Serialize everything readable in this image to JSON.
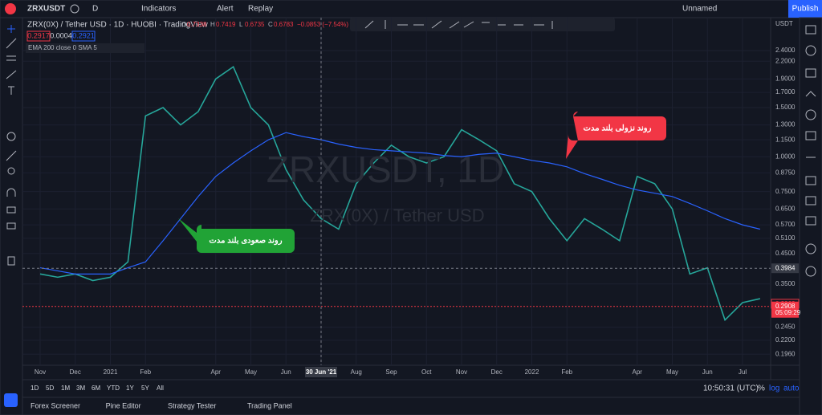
{
  "toolbar": {
    "symbol": "ZRXUSDT",
    "interval": "D",
    "indicators": "Indicators",
    "alert": "Alert",
    "replay": "Replay",
    "layout": "Unnamed",
    "publish": "Publish"
  },
  "legend": {
    "title": "ZRX(0X) / Tether USD · 1D · HUOBI · TradingView",
    "ohlc": [
      {
        "label": "O",
        "value": "0.7338"
      },
      {
        "label": "H",
        "value": "0.7419"
      },
      {
        "label": "L",
        "value": "0.6735"
      },
      {
        "label": "C",
        "value": "0.6783"
      }
    ],
    "change": "−0.0853 (−7.54%)",
    "bid": "0.2917",
    "spread": "0.0004",
    "ask": "0.2921",
    "indicator": "EMA 200 close 0 SMA 5"
  },
  "watermark": {
    "symbol": "ZRXUSDT, 1D",
    "name": "ZRX(0X) / Tether USD"
  },
  "chart_data": {
    "type": "line",
    "log": true,
    "currency": "USDT",
    "categories": [
      "Nov",
      null,
      "Dec",
      null,
      "2021",
      null,
      "Feb",
      null,
      null,
      null,
      "Apr",
      null,
      "May",
      null,
      "Jun",
      null,
      "30 Jun '21",
      null,
      "Aug",
      null,
      "Sep",
      null,
      "Oct",
      null,
      "Nov",
      null,
      "Dec",
      null,
      "2022",
      null,
      "Feb",
      null,
      null,
      null,
      "Apr",
      null,
      "May",
      null,
      "Jun",
      null,
      "Jul",
      null
    ],
    "series": [
      {
        "color": "#26a69a",
        "values": [
          0.38,
          0.37,
          0.38,
          0.36,
          0.37,
          0.42,
          1.4,
          1.5,
          1.3,
          1.45,
          1.9,
          2.1,
          1.5,
          1.3,
          0.9,
          0.7,
          0.6,
          0.55,
          0.8,
          0.95,
          1.1,
          1.0,
          0.95,
          1.0,
          1.25,
          1.15,
          1.05,
          0.8,
          0.75,
          0.6,
          0.5,
          0.6,
          0.55,
          0.5,
          0.85,
          0.8,
          0.65,
          0.38,
          0.4,
          0.26,
          0.3,
          0.31
        ]
      },
      {
        "color": "#2962ff",
        "values": [
          0.4,
          0.39,
          0.38,
          0.38,
          0.38,
          0.4,
          0.42,
          0.5,
          0.6,
          0.72,
          0.85,
          0.95,
          1.05,
          1.15,
          1.22,
          1.18,
          1.15,
          1.11,
          1.08,
          1.06,
          1.05,
          1.04,
          1.03,
          1.01,
          1.0,
          1.02,
          1.03,
          1.0,
          0.97,
          0.95,
          0.92,
          0.87,
          0.83,
          0.79,
          0.76,
          0.74,
          0.72,
          0.68,
          0.64,
          0.6,
          0.57,
          0.55
        ]
      }
    ],
    "ylim": [
      0.179,
      3.15
    ],
    "yticks": [
      {
        "value": 2.4,
        "label": "2.4000"
      },
      {
        "value": 2.2,
        "label": "2.2000"
      },
      {
        "value": 1.9,
        "label": "1.9000"
      },
      {
        "value": 1.7,
        "label": "1.7000"
      },
      {
        "value": 1.5,
        "label": "1.5000"
      },
      {
        "value": 1.3,
        "label": "1.3000"
      },
      {
        "value": 1.15,
        "label": "1.1500"
      },
      {
        "value": 1,
        "label": "1.0000"
      },
      {
        "value": 0.875,
        "label": "0.8750"
      },
      {
        "value": 0.75,
        "label": "0.7500"
      },
      {
        "value": 0.65,
        "label": "0.6500"
      },
      {
        "value": 0.57,
        "label": "0.5700"
      },
      {
        "value": 0.51,
        "label": "0.5100"
      },
      {
        "value": 0.45,
        "label": "0.4500"
      },
      {
        "value": 0.35,
        "label": "0.3500"
      },
      {
        "value": 0.245,
        "label": "0.2450"
      },
      {
        "value": 0.22,
        "label": "0.2200"
      },
      {
        "value": 0.196,
        "label": "0.1960"
      }
    ],
    "crosshair": {
      "value": 0.3984,
      "label": "0.3984"
    },
    "prev_close": {
      "value": 0.2963,
      "label": "0.2963"
    },
    "last_price": {
      "value": 0.2908,
      "label": "0.2908"
    },
    "countdown": "05:09:29",
    "annotations": [
      {
        "text": "روند صعودی بلند مدت",
        "color": "#21a336"
      },
      {
        "text": "روند نزولی بلند مدت",
        "color": "#f23645"
      }
    ]
  },
  "bottom": {
    "ranges": [
      "1D",
      "5D",
      "1M",
      "3M",
      "6M",
      "YTD",
      "1Y",
      "5Y",
      "All"
    ],
    "time": "10:50:31 (UTC)",
    "percent": "%",
    "log": "log",
    "auto": "auto",
    "tabs": [
      "Forex Screener",
      "Pine Editor",
      "Strategy Tester",
      "Trading Panel"
    ]
  }
}
